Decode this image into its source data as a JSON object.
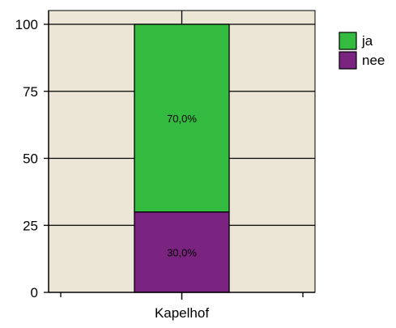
{
  "chart_data": {
    "type": "bar",
    "stacked": true,
    "categories": [
      "Kapelhof"
    ],
    "series": [
      {
        "name": "nee",
        "values": [
          30
        ],
        "label": "30,0%",
        "color": "#7a2380"
      },
      {
        "name": "ja",
        "values": [
          70
        ],
        "label": "70,0%",
        "color": "#33bb3f"
      }
    ],
    "yticks": [
      "0",
      "25",
      "50",
      "75",
      "100"
    ],
    "ylim": [
      0,
      100
    ],
    "grid": true,
    "legend_position": "top-right",
    "plot_background": "#ebe6d6"
  }
}
